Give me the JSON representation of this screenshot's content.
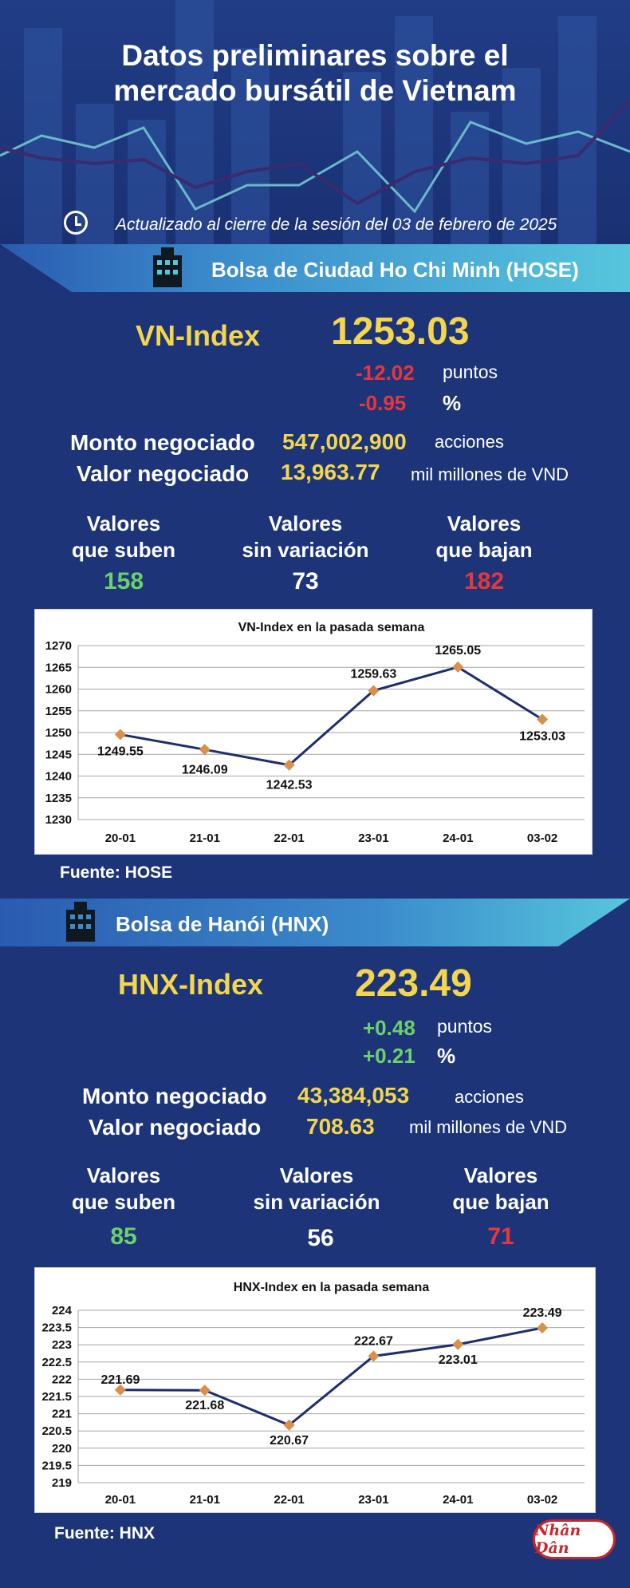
{
  "header": {
    "title_line1": "Datos preliminares sobre el",
    "title_line2": "mercado bursátil de Vietnam",
    "updated": "Actualizado al cierre de la sesión del 03 de febrero de 2025"
  },
  "hose": {
    "section_title": "Bolsa de Ciudad Ho Chi Minh (HOSE)",
    "index_name": "VN-Index",
    "index_value": "1253.03",
    "change_points": "-12.02",
    "points_label": "puntos",
    "change_percent": "-0.95",
    "percent_label": "%",
    "volume_label": "Monto negociado",
    "volume_value": "547,002,900",
    "volume_unit": "acciones",
    "value_label": "Valor negociado",
    "value_value": "13,963.77",
    "value_unit": "mil millones de VND",
    "up_label_1": "Valores",
    "up_label_2": "que suben",
    "up_count": "158",
    "flat_label_1": "Valores",
    "flat_label_2": "sin variación",
    "flat_count": "73",
    "down_label_1": "Valores",
    "down_label_2": "que bajan",
    "down_count": "182",
    "source": "Fuente: HOSE"
  },
  "hnx": {
    "section_title": "Bolsa de Hanói (HNX)",
    "index_name": "HNX-Index",
    "index_value": "223.49",
    "change_points": "+0.48",
    "points_label": "puntos",
    "change_percent": "+0.21",
    "percent_label": "%",
    "volume_label": "Monto negociado",
    "volume_value": "43,384,053",
    "volume_unit": "acciones",
    "value_label": "Valor negociado",
    "value_value": "708.63",
    "value_unit": "mil millones de VND",
    "up_label_1": "Valores",
    "up_label_2": "que suben",
    "up_count": "85",
    "flat_label_1": "Valores",
    "flat_label_2": "sin variación",
    "flat_count": "56",
    "down_label_1": "Valores",
    "down_label_2": "que bajan",
    "down_count": "71",
    "source": "Fuente:  HNX"
  },
  "logo_text": "Nhân Dân",
  "colors": {
    "accent": "#f3d64e",
    "negative": "#e8363c",
    "positive": "#6dd06a",
    "line": "#1f2d6e",
    "marker": "#d9904b",
    "background": "#1d3578"
  },
  "chart_data": [
    {
      "type": "line",
      "title": "VN-Index en la pasada semana",
      "categories": [
        "20-01",
        "21-01",
        "22-01",
        "23-01",
        "24-01",
        "03-02"
      ],
      "values": [
        1249.55,
        1246.09,
        1242.53,
        1259.63,
        1265.05,
        1253.03
      ],
      "data_labels": [
        "1249.55",
        "1246.09",
        "1242.53",
        "1259.63",
        "1265.05",
        "1253.03"
      ],
      "yticks": [
        "1270",
        "1265",
        "1260",
        "1255",
        "1250",
        "1245",
        "1240",
        "1235",
        "1230"
      ],
      "ylim": [
        1230,
        1270
      ],
      "grid": true
    },
    {
      "type": "line",
      "title": "HNX-Index en la pasada semana",
      "categories": [
        "20-01",
        "21-01",
        "22-01",
        "23-01",
        "24-01",
        "03-02"
      ],
      "values": [
        221.69,
        221.68,
        220.67,
        222.67,
        223.01,
        223.49
      ],
      "data_labels": [
        "221.69",
        "221.68",
        "220.67",
        "222.67",
        "223.01",
        "223.49"
      ],
      "yticks": [
        "224",
        "223.5",
        "223",
        "222.5",
        "222",
        "221.5",
        "221",
        "220.5",
        "220",
        "219.5",
        "219"
      ],
      "ylim": [
        219,
        224
      ],
      "grid": true
    }
  ]
}
